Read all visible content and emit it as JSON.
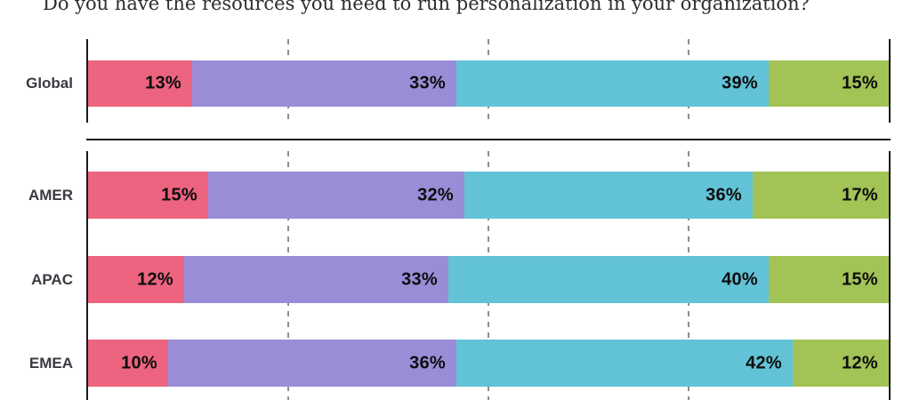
{
  "title": "Do you have the resources you need to run personalization in your organization?",
  "chart_data": {
    "type": "bar",
    "variant": "stacked-horizontal",
    "unit": "%",
    "xlim": [
      0,
      100
    ],
    "gridlines_pct": [
      25,
      50,
      75
    ],
    "grid": "dashed-vertical",
    "legend": "none",
    "segment_names": [
      "pink",
      "purple",
      "teal",
      "green"
    ],
    "segment_colors": [
      "#EC647F",
      "#9A8DD8",
      "#62C3D6",
      "#A2C355"
    ],
    "groups": [
      {
        "name": "global",
        "rows": [
          {
            "label": "Global",
            "values": [
              13,
              33,
              39,
              15
            ]
          }
        ]
      },
      {
        "name": "regions",
        "rows": [
          {
            "label": "AMER",
            "values": [
              15,
              32,
              36,
              17
            ]
          },
          {
            "label": "APAC",
            "values": [
              12,
              33,
              40,
              15
            ]
          },
          {
            "label": "EMEA",
            "values": [
              10,
              36,
              42,
              12
            ]
          }
        ]
      }
    ]
  },
  "colors": {
    "background": "#FFFFFF",
    "axis": "#1A1A1A",
    "gridline": "#8F8F8F",
    "row_label": "#3A3A42",
    "value_label": "#0D0D0D",
    "title": "#2E2E2E"
  }
}
